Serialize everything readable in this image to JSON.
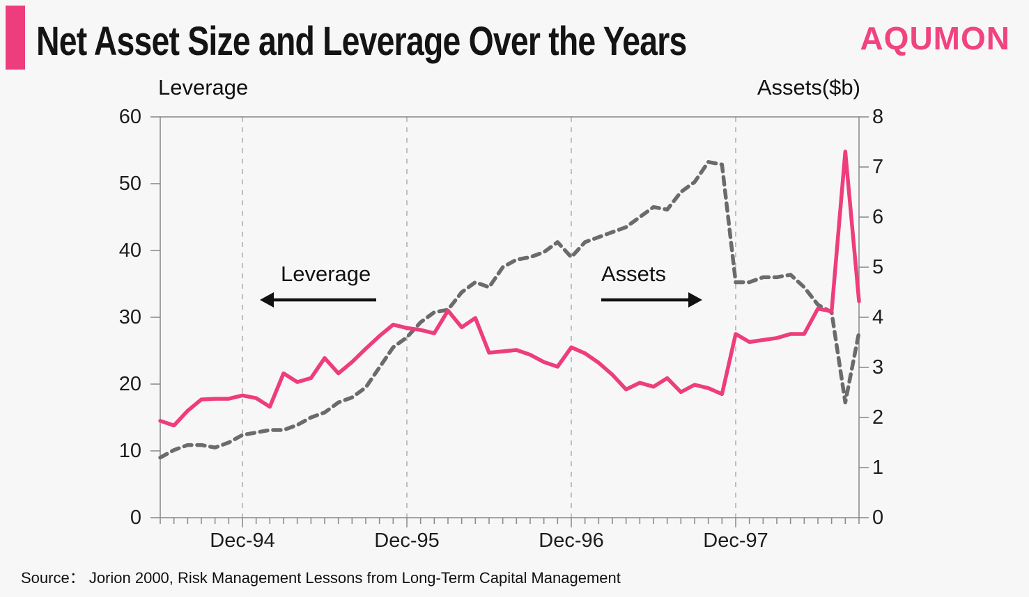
{
  "header": {
    "title": "Net Asset Size and Leverage Over the Years",
    "logo": "AQUMON"
  },
  "chart": {
    "left_axis_title": "Leverage",
    "right_axis_title": "Assets($b)",
    "annotation_leverage": "Leverage",
    "annotation_assets": "Assets"
  },
  "source": {
    "text": "Source： Jorion 2000, Risk Management Lessons from Long-Term Capital Management"
  },
  "colors": {
    "accent_pink": "#EE3D7C",
    "logo_pink": "#F0437F",
    "assets_gray": "#6B6B6B",
    "axis_gray": "#8C8C8C",
    "gridline_gray": "#ABABAB",
    "text_black": "#111111",
    "background": "#F7F7F7"
  },
  "chart_data": {
    "type": "line",
    "title": "Net Asset Size and Leverage Over the Years",
    "x_monthly": [
      "Jun-94",
      "Jul-94",
      "Aug-94",
      "Sep-94",
      "Oct-94",
      "Nov-94",
      "Dec-94",
      "Jan-95",
      "Feb-95",
      "Mar-95",
      "Apr-95",
      "May-95",
      "Jun-95",
      "Jul-95",
      "Aug-95",
      "Sep-95",
      "Oct-95",
      "Nov-95",
      "Dec-95",
      "Jan-96",
      "Feb-96",
      "Mar-96",
      "Apr-96",
      "May-96",
      "Jun-96",
      "Jul-96",
      "Aug-96",
      "Sep-96",
      "Oct-96",
      "Nov-96",
      "Dec-96",
      "Jan-97",
      "Feb-97",
      "Mar-97",
      "Apr-97",
      "May-97",
      "Jun-97",
      "Jul-97",
      "Aug-97",
      "Sep-97",
      "Oct-97",
      "Nov-97",
      "Dec-97",
      "Jan-98",
      "Feb-98",
      "Mar-98",
      "Apr-98",
      "May-98",
      "Jun-98",
      "Jul-98",
      "Aug-98",
      "Sep-98"
    ],
    "x_tick_labels": [
      "Dec-94",
      "Dec-95",
      "Dec-96",
      "Dec-97"
    ],
    "x_tick_indices": [
      6,
      18,
      30,
      42
    ],
    "left_axis": {
      "label": "Leverage",
      "min": 0,
      "max": 60,
      "ticks": [
        0,
        10,
        20,
        30,
        40,
        50,
        60
      ]
    },
    "right_axis": {
      "label": "Assets($b)",
      "min": 0,
      "max": 8,
      "ticks": [
        0,
        1,
        2,
        3,
        4,
        5,
        6,
        7,
        8
      ]
    },
    "grid": "vertical dashed lines at December ticks",
    "legend": "in-plot text annotations with arrows",
    "series": [
      {
        "name": "Assets",
        "axis": "right",
        "style": "dashed",
        "color": "#6B6B6B",
        "values": [
          1.2,
          1.35,
          1.45,
          1.45,
          1.4,
          1.5,
          1.65,
          1.7,
          1.75,
          1.75,
          1.85,
          2.0,
          2.1,
          2.3,
          2.4,
          2.6,
          3.0,
          3.4,
          3.6,
          3.9,
          4.1,
          4.15,
          4.5,
          4.7,
          4.6,
          5.0,
          5.15,
          5.2,
          5.3,
          5.5,
          5.2,
          5.5,
          5.6,
          5.7,
          5.8,
          6.0,
          6.2,
          6.15,
          6.5,
          6.7,
          7.1,
          7.05,
          4.7,
          4.7,
          4.8,
          4.8,
          4.85,
          4.6,
          4.25,
          4.1,
          2.3,
          3.7
        ]
      },
      {
        "name": "Leverage",
        "axis": "left",
        "style": "solid",
        "color": "#EE3D7C",
        "values": [
          14.5,
          13.8,
          16.0,
          17.7,
          17.8,
          17.8,
          18.3,
          17.9,
          16.6,
          21.6,
          20.3,
          20.9,
          23.9,
          21.6,
          23.3,
          25.3,
          27.2,
          28.9,
          28.4,
          28.1,
          27.6,
          31.0,
          28.5,
          29.9,
          24.7,
          24.9,
          25.1,
          24.4,
          23.3,
          22.6,
          25.5,
          24.6,
          23.2,
          21.4,
          19.2,
          20.2,
          19.6,
          20.9,
          18.8,
          19.9,
          19.4,
          18.5,
          27.5,
          26.3,
          26.6,
          26.9,
          27.5,
          27.5,
          31.3,
          30.9,
          54.8,
          32.4
        ]
      }
    ]
  }
}
